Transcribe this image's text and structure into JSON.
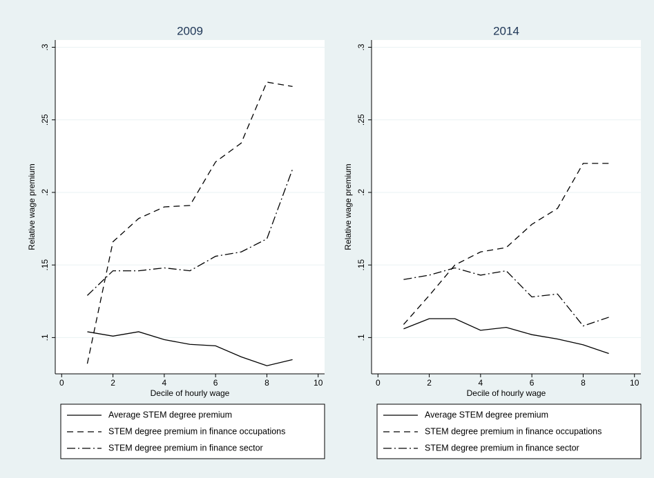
{
  "chart_data": [
    {
      "type": "line",
      "title": "2009",
      "x_label": "Decile of hourly wage",
      "y_label": "Relative wage premium",
      "xlim": [
        -0.25,
        10.25
      ],
      "xticks": [
        0,
        2,
        4,
        6,
        8,
        10
      ],
      "ylim": [
        0.075,
        0.305
      ],
      "yticks": [
        {
          "value": 0.1,
          "label": ".1"
        },
        {
          "value": 0.15,
          "label": ".15"
        },
        {
          "value": 0.2,
          "label": ".2"
        },
        {
          "value": 0.25,
          "label": ".25"
        },
        {
          "value": 0.3,
          "label": ".3"
        }
      ],
      "grid": true,
      "x": [
        1,
        2,
        3,
        4,
        5,
        6,
        7,
        8,
        9
      ],
      "series": [
        {
          "name": "Average STEM degree premium",
          "color": "#000000",
          "dash": "solid",
          "values": [
            0.104,
            0.101,
            0.104,
            0.0986,
            0.0953,
            0.0943,
            0.0867,
            0.0806,
            0.0848
          ]
        },
        {
          "name": "STEM degree premium in finance occupations",
          "color": "#000000",
          "dash": "dashed",
          "values": [
            0.082,
            0.166,
            0.182,
            0.19,
            0.191,
            0.221,
            0.234,
            0.276,
            0.273
          ]
        },
        {
          "name": "STEM degree premium in finance sector",
          "color": "#000000",
          "dash": "dash-dot",
          "values": [
            0.129,
            0.146,
            0.146,
            0.148,
            0.146,
            0.156,
            0.159,
            0.168,
            0.216
          ]
        }
      ]
    },
    {
      "type": "line",
      "title": "2014",
      "x_label": "Decile of hourly wage",
      "y_label": "Relative wage premium",
      "xlim": [
        -0.25,
        10.25
      ],
      "xticks": [
        0,
        2,
        4,
        6,
        8,
        10
      ],
      "ylim": [
        0.075,
        0.305
      ],
      "yticks": [
        {
          "value": 0.1,
          "label": ".1"
        },
        {
          "value": 0.15,
          "label": ".15"
        },
        {
          "value": 0.2,
          "label": ".2"
        },
        {
          "value": 0.25,
          "label": ".25"
        },
        {
          "value": 0.3,
          "label": ".3"
        }
      ],
      "grid": true,
      "x": [
        1,
        2,
        3,
        4,
        5,
        6,
        7,
        8,
        9
      ],
      "series": [
        {
          "name": "Average STEM degree premium",
          "color": "#000000",
          "dash": "solid",
          "values": [
            0.106,
            0.113,
            0.113,
            0.105,
            0.107,
            0.102,
            0.099,
            0.095,
            0.089
          ]
        },
        {
          "name": "STEM degree premium in finance occupations",
          "color": "#000000",
          "dash": "dashed",
          "values": [
            0.109,
            0.129,
            0.15,
            0.159,
            0.162,
            0.178,
            0.189,
            0.22,
            0.22
          ]
        },
        {
          "name": "STEM degree premium in finance sector",
          "color": "#000000",
          "dash": "dash-dot",
          "values": [
            0.14,
            0.143,
            0.148,
            0.143,
            0.146,
            0.128,
            0.13,
            0.108,
            0.114
          ]
        }
      ]
    }
  ]
}
